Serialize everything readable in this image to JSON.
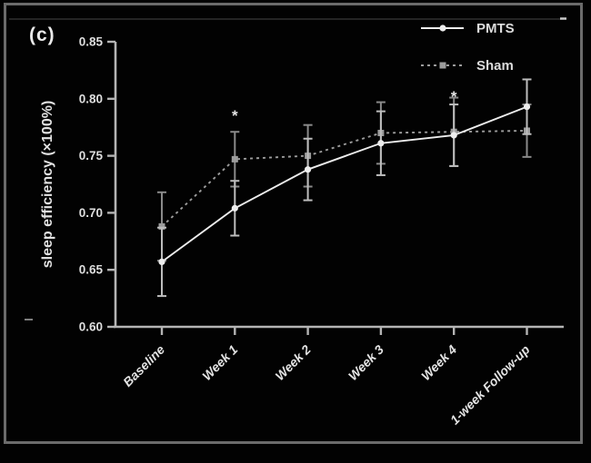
{
  "panel_label": "(c)",
  "chart_data": {
    "type": "line",
    "title": "",
    "xlabel": "",
    "ylabel": "sleep efficiency (×100%)",
    "ylim": [
      0.6,
      0.85
    ],
    "ytick_values": [
      0.6,
      0.65,
      0.7,
      0.75,
      0.8,
      0.85
    ],
    "ytick_labels": [
      "0.60",
      "0.65",
      "0.70",
      "0.75",
      "0.80",
      "0.85"
    ],
    "categories": [
      "Baseline",
      "Week 1",
      "Week 2",
      "Week 3",
      "Week 4",
      "1-week Follow-up"
    ],
    "grid": false,
    "legend_position": "top-right",
    "background_color": "#020202",
    "axis_color": "#b4b4b4",
    "series": [
      {
        "name": "Sham",
        "style": "dashed",
        "marker": "square",
        "color": "#9c9c9c",
        "error_color": "#8a8a8a",
        "values": [
          0.688,
          0.747,
          0.75,
          0.77,
          0.771,
          0.772
        ],
        "errors": [
          0.03,
          0.024,
          0.027,
          0.027,
          0.03,
          0.023
        ]
      },
      {
        "name": "PMTS",
        "style": "solid",
        "marker": "circle",
        "color": "#ededed",
        "error_color": "#bdbdbd",
        "values": [
          0.657,
          0.704,
          0.738,
          0.761,
          0.768,
          0.793
        ],
        "errors": [
          0.03,
          0.024,
          0.027,
          0.028,
          0.027,
          0.024
        ]
      }
    ],
    "annotations": [
      {
        "category": "Week 1",
        "value": 0.785,
        "symbol": "*"
      },
      {
        "category": "Week 4",
        "value": 0.802,
        "symbol": "*"
      }
    ]
  }
}
